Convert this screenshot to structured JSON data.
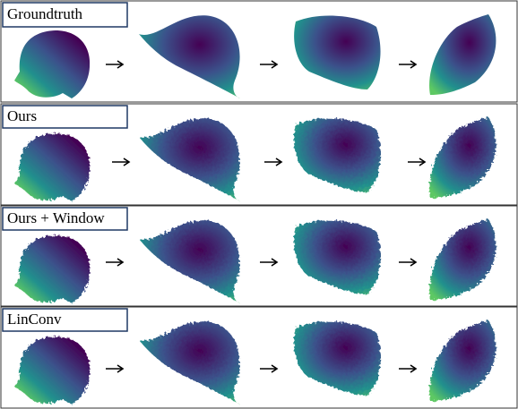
{
  "rows": [
    {
      "label": "Groundtruth"
    },
    {
      "label": "Ours"
    },
    {
      "label": "Ours + Window"
    },
    {
      "label": "LinConv"
    }
  ]
}
